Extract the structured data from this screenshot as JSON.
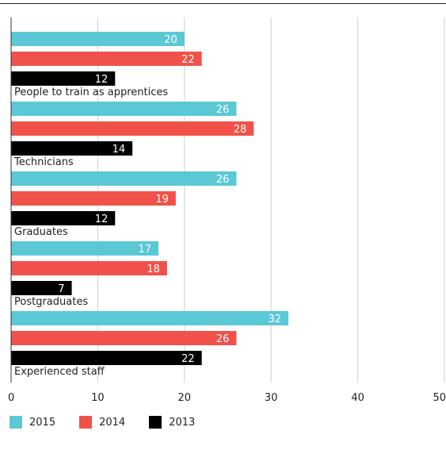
{
  "chart_data": {
    "type": "bar",
    "orientation": "horizontal",
    "title": "",
    "xlabel": "",
    "ylabel": "",
    "xlim": [
      0,
      50
    ],
    "xticks": [
      0,
      10,
      20,
      30,
      40,
      50
    ],
    "grid": true,
    "legend_placement": "bottom-left",
    "categories": [
      "People to train as apprentices",
      "Technicians",
      "Graduates",
      "Postgraduates",
      "Experienced staff"
    ],
    "series": [
      {
        "name": "2015",
        "color": "#5bc8d6",
        "values": [
          20,
          26,
          26,
          17,
          32
        ]
      },
      {
        "name": "2014",
        "color": "#f0524a",
        "values": [
          22,
          28,
          19,
          18,
          26
        ]
      },
      {
        "name": "2013",
        "color": "#000000",
        "values": [
          12,
          14,
          12,
          7,
          22
        ]
      }
    ]
  }
}
